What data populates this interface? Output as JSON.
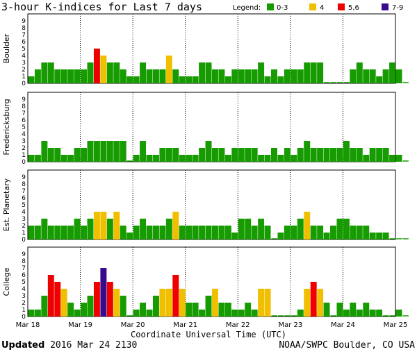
{
  "title": "3-hour K-indices for Last 7 days",
  "footer": {
    "updated_label": "Updated",
    "updated_value": "2016 Mar 24 2130",
    "credit": "NOAA/SWPC Boulder, CO USA"
  },
  "legend": {
    "label": "Legend:",
    "items": [
      {
        "label": "0-3",
        "color": "#169b00"
      },
      {
        "label": "4",
        "color": "#f0c000"
      },
      {
        "label": "5,6",
        "color": "#ee0000"
      },
      {
        "label": "7-9",
        "color": "#3a0a8c"
      }
    ]
  },
  "chart_data": {
    "type": "bar",
    "title": "3-hour K-indices for Last 7 days",
    "xlabel": "Coordinate Universal Time (UTC)",
    "x_ticks": [
      "Mar 18",
      "Mar 19",
      "Mar 20",
      "Mar 21",
      "Mar 22",
      "Mar 23",
      "Mar 24",
      "Mar 25"
    ],
    "y_ticks": [
      "0",
      "1",
      "2",
      "3",
      "4",
      "5",
      "6",
      "7",
      "8",
      "9"
    ],
    "ylim": [
      0,
      9
    ],
    "bins_per_day": 8,
    "series": [
      {
        "name": "Boulder",
        "values": [
          1,
          2,
          3,
          3,
          2,
          2,
          2,
          2,
          2,
          3,
          5,
          4,
          3,
          3,
          2,
          1,
          1,
          3,
          2,
          2,
          2,
          4,
          2,
          1,
          1,
          1,
          3,
          3,
          2,
          2,
          1,
          2,
          2,
          2,
          2,
          3,
          1,
          2,
          1,
          2,
          2,
          2,
          3,
          3,
          3,
          0,
          0,
          0,
          0,
          2,
          3,
          2,
          2,
          1,
          2,
          3,
          2,
          0
        ]
      },
      {
        "name": "Fredericksburg",
        "values": [
          1,
          1,
          3,
          2,
          2,
          1,
          1,
          2,
          2,
          3,
          3,
          3,
          3,
          3,
          3,
          0,
          1,
          3,
          1,
          1,
          2,
          2,
          2,
          1,
          1,
          1,
          2,
          3,
          2,
          2,
          1,
          2,
          2,
          2,
          2,
          1,
          1,
          2,
          1,
          2,
          1,
          2,
          3,
          2,
          2,
          2,
          2,
          2,
          3,
          2,
          2,
          1,
          2,
          2,
          2,
          1,
          1,
          0
        ]
      },
      {
        "name": "Est. Planetary",
        "values": [
          2,
          2,
          3,
          2,
          2,
          2,
          2,
          3,
          2,
          3,
          4,
          4,
          3,
          4,
          2,
          1,
          2,
          3,
          2,
          2,
          2,
          3,
          4,
          2,
          2,
          2,
          2,
          2,
          2,
          2,
          2,
          1,
          3,
          3,
          2,
          3,
          2,
          0,
          1,
          2,
          2,
          3,
          4,
          2,
          2,
          1,
          2,
          3,
          3,
          2,
          2,
          2,
          1,
          1,
          1,
          0,
          0,
          0
        ]
      },
      {
        "name": "College",
        "values": [
          1,
          1,
          3,
          6,
          5,
          4,
          2,
          1,
          2,
          3,
          5,
          7,
          5,
          4,
          3,
          0,
          1,
          2,
          1,
          3,
          4,
          4,
          6,
          4,
          2,
          2,
          1,
          3,
          4,
          2,
          2,
          1,
          1,
          2,
          1,
          4,
          4,
          0,
          0,
          0,
          0,
          1,
          4,
          5,
          4,
          2,
          0,
          2,
          1,
          2,
          1,
          2,
          1,
          1,
          0,
          0,
          1,
          0
        ]
      }
    ]
  }
}
